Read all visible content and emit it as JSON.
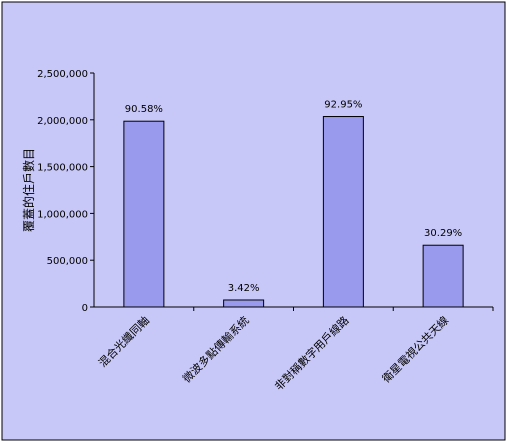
{
  "chart_data": {
    "type": "bar",
    "title": "",
    "xlabel": "",
    "ylabel": "覆蓋的住戶數目",
    "categories": [
      "混合光纖同軸",
      "微波多點傳輸系統",
      "非對稱數字用戶線路",
      "衛星電視公共天線"
    ],
    "values": [
      1985000,
      75000,
      2035000,
      660000
    ],
    "data_labels": [
      "90.58%",
      "3.42%",
      "92.95%",
      "30.29%"
    ],
    "ylim": [
      0,
      2500000
    ],
    "yticks": [
      0,
      500000,
      1000000,
      1500000,
      2000000,
      2500000
    ],
    "ytick_labels": [
      "0",
      "500,000",
      "1,000,000",
      "1,500,000",
      "2,000,000",
      "2,500,000"
    ],
    "grid": false,
    "legend": "none"
  },
  "colors": {
    "page_background": "#ffffff",
    "plot_area": "#c8c8f8",
    "bar_fill": "#9999ee",
    "bar_stroke": "#000000",
    "frame": "#000000"
  }
}
